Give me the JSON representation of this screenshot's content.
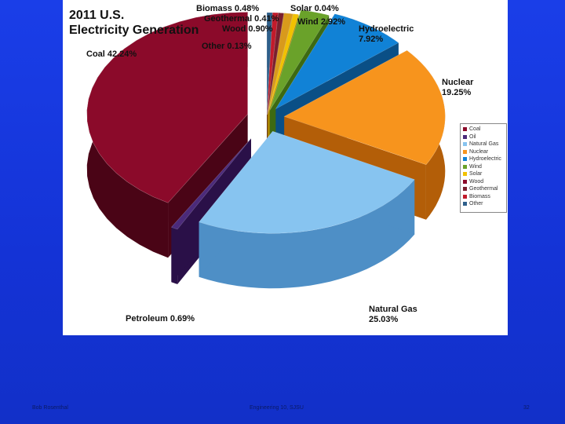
{
  "footer": {
    "author": "Bob Rosenthal",
    "course": "Engineering 10, SJSU",
    "page": "32"
  },
  "chart_data": {
    "type": "pie",
    "title": "2011 U.S.\nElectricity Generation",
    "slices": [
      {
        "name": "Coal",
        "value": 42.24,
        "label": "Coal 42.24%",
        "color": "#8B0A2A",
        "side": "#4a0416"
      },
      {
        "name": "Oil",
        "value": 0.69,
        "label": "Petroleum 0.69%",
        "color": "#4B2A7A",
        "side": "#2a1048"
      },
      {
        "name": "Natural Gas",
        "value": 25.03,
        "label": "Natural Gas\n25.03%",
        "color": "#87C4F0",
        "side": "#4e8fc6"
      },
      {
        "name": "Nuclear",
        "value": 19.25,
        "label": "Nuclear\n19.25%",
        "color": "#F7941D",
        "side": "#b35e08"
      },
      {
        "name": "Hydroelectric",
        "value": 7.92,
        "label": "Hydroelectric\n7.92%",
        "color": "#1182D6",
        "side": "#0a4f86"
      },
      {
        "name": "Wind",
        "value": 2.92,
        "label": "Wind 2.92%",
        "color": "#6AA22A",
        "side": "#3d6a12"
      },
      {
        "name": "Solar",
        "value": 0.04,
        "label": "Solar 0.04%",
        "color": "#F2C100",
        "side": "#a88300"
      },
      {
        "name": "Wood",
        "value": 0.9,
        "label": "Wood 0.90%",
        "color": "#D89A1C",
        "side": "#8d610a"
      },
      {
        "name": "Geothermal",
        "value": 0.41,
        "label": "Geothermal 0.41%",
        "color": "#7A1F2E",
        "side": "#45101a"
      },
      {
        "name": "Biomass",
        "value": 0.48,
        "label": "Biomass 0.48%",
        "color": "#C21B2B",
        "side": "#7a0f18"
      },
      {
        "name": "Other",
        "value": 0.13,
        "label": "Other 0.13%",
        "color": "#2E5F8A",
        "side": "#173650"
      }
    ],
    "legend": [
      "Coal",
      "Oil",
      "Natural Gas",
      "Nuclear",
      "Hydroelectric",
      "Wind",
      "Solar",
      "Wood",
      "Geothermal",
      "Biomass",
      "Other"
    ],
    "legend_colors": [
      "#8B0A2A",
      "#4B2A7A",
      "#87C4F0",
      "#F7941D",
      "#1182D6",
      "#6AA22A",
      "#F2C100",
      "#8B0A2A",
      "#7A1F2E",
      "#C21B2B",
      "#2E5F8A"
    ],
    "legend_position": "right"
  }
}
